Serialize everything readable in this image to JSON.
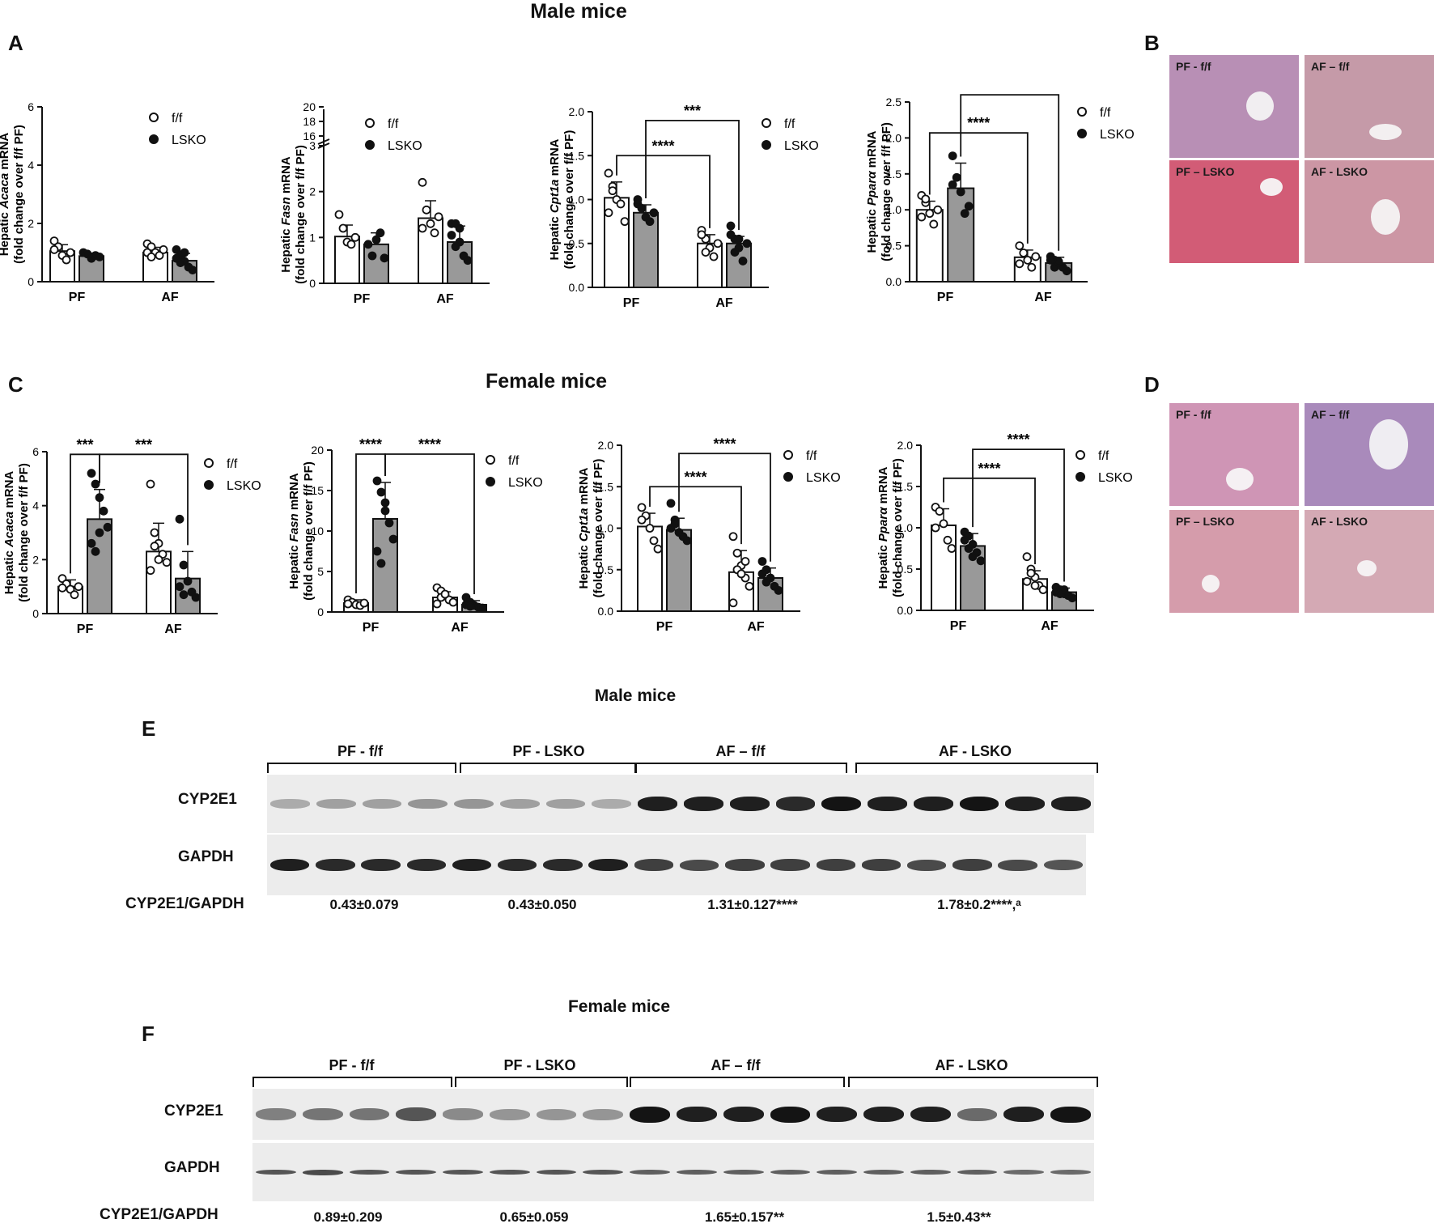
{
  "headers": {
    "male_top": "Male mice",
    "female_top": "Female mice",
    "male_blot": "Male mice",
    "female_blot": "Female mice"
  },
  "panel_letters": {
    "A": "A",
    "B": "B",
    "C": "C",
    "D": "D",
    "E": "E",
    "F": "F"
  },
  "colors": {
    "ff_bar": "#ffffff",
    "lsko_bar": "#999999",
    "ink": "#111111"
  },
  "legend": {
    "ff": "f/f",
    "lsko": "LSKO"
  },
  "chart_data": [
    {
      "id": "m_acaca",
      "type": "bar",
      "ylabel_pre": "Hepatic ",
      "ylabel_gene": "Acaca",
      "ylabel_post": " mRNA",
      "ylabel2": "(fold change over f/f PF)",
      "categories": [
        "PF",
        "AF"
      ],
      "ylim": [
        0,
        6
      ],
      "yticks": [
        "0",
        "2",
        "4",
        "6"
      ],
      "yvals": [
        0,
        2,
        4,
        6
      ],
      "series": [
        {
          "name": "f/f",
          "values": [
            1.05,
            1.0
          ],
          "err": [
            0.22,
            0.18
          ],
          "points": [
            [
              1.4,
              1.2,
              0.9,
              0.75,
              1.0,
              1.1
            ],
            [
              1.3,
              1.2,
              1.0,
              0.9,
              1.1,
              1.0,
              0.85
            ]
          ]
        },
        {
          "name": "LSKO",
          "values": [
            0.88,
            0.72
          ],
          "err": [
            0.1,
            0.25
          ],
          "points": [
            [
              1.0,
              0.95,
              0.8,
              0.9,
              0.85
            ],
            [
              1.1,
              0.9,
              0.7,
              0.5,
              0.4,
              0.8,
              0.65,
              1.0
            ]
          ]
        }
      ],
      "sig": []
    },
    {
      "id": "m_fasn",
      "type": "bar",
      "ylabel_pre": "Hepatic ",
      "ylabel_gene": "Fasn",
      "ylabel_post": " mRNA",
      "ylabel2": "(fold change over f/f PF)",
      "categories": [
        "PF",
        "AF"
      ],
      "ylim": [
        0,
        3
      ],
      "yticks": [
        "0",
        "1",
        "2",
        "3"
      ],
      "yvals": [
        0,
        1,
        2,
        3
      ],
      "upper_ticks": [
        "16",
        "18",
        "20"
      ],
      "series": [
        {
          "name": "f/f",
          "values": [
            1.02,
            1.42
          ],
          "err": [
            0.25,
            0.38
          ],
          "points": [
            [
              1.5,
              1.2,
              0.9,
              0.85,
              1.0
            ],
            [
              2.2,
              1.6,
              1.3,
              1.1,
              1.45,
              1.2
            ]
          ]
        },
        {
          "name": "LSKO",
          "values": [
            0.85,
            0.9
          ],
          "err": [
            0.25,
            0.35
          ],
          "points": [
            [
              0.85,
              0.6,
              0.95,
              1.1,
              0.55
            ],
            [
              1.3,
              1.3,
              0.9,
              0.6,
              0.5,
              1.05,
              0.8,
              1.2
            ]
          ]
        }
      ],
      "sig": []
    },
    {
      "id": "m_cpt1a",
      "type": "bar",
      "ylabel_pre": "Hepatic ",
      "ylabel_gene": "Cpt1a",
      "ylabel_post": " mRNA",
      "ylabel2": "(fold change over f/f PF)",
      "categories": [
        "PF",
        "AF"
      ],
      "ylim": [
        0,
        2.0
      ],
      "yticks": [
        "0.0",
        "0.5",
        "1.0",
        "1.5",
        "2.0"
      ],
      "yvals": [
        0,
        0.5,
        1.0,
        1.5,
        2.0
      ],
      "series": [
        {
          "name": "f/f",
          "values": [
            1.02,
            0.5
          ],
          "err": [
            0.18,
            0.1
          ],
          "points": [
            [
              1.3,
              1.15,
              1.0,
              0.95,
              0.75,
              0.85,
              1.1
            ],
            [
              0.65,
              0.55,
              0.45,
              0.35,
              0.5,
              0.6,
              0.4
            ]
          ]
        },
        {
          "name": "LSKO",
          "values": [
            0.85,
            0.5
          ],
          "err": [
            0.09,
            0.08
          ],
          "points": [
            [
              0.95,
              0.9,
              0.8,
              0.75,
              0.85,
              1.0
            ],
            [
              0.7,
              0.55,
              0.45,
              0.3,
              0.5,
              0.6,
              0.4,
              0.55
            ]
          ]
        }
      ],
      "sig": [
        {
          "label": "****",
          "x1": [
            0,
            0
          ],
          "x2": [
            1,
            0
          ],
          "y": 1.5
        },
        {
          "label": "***",
          "x1": [
            0,
            1
          ],
          "x2": [
            1,
            1
          ],
          "y": 1.9
        }
      ]
    },
    {
      "id": "m_ppara",
      "type": "bar",
      "ylabel_pre": "Hepatic ",
      "ylabel_gene": "Pparα",
      "ylabel_post": " mRNA",
      "ylabel2": "(fold change over f/f PF)",
      "categories": [
        "PF",
        "AF"
      ],
      "ylim": [
        0,
        2.5
      ],
      "yticks": [
        "0.0",
        "0.5",
        "1.0",
        "1.5",
        "2.0",
        "2.5"
      ],
      "yvals": [
        0,
        0.5,
        1.0,
        1.5,
        2.0,
        2.5
      ],
      "series": [
        {
          "name": "f/f",
          "values": [
            1.0,
            0.34
          ],
          "err": [
            0.12,
            0.1
          ],
          "points": [
            [
              1.2,
              1.1,
              0.95,
              0.8,
              1.0,
              0.9,
              1.15
            ],
            [
              0.5,
              0.4,
              0.3,
              0.2,
              0.35,
              0.25
            ]
          ]
        },
        {
          "name": "LSKO",
          "values": [
            1.3,
            0.26
          ],
          "err": [
            0.35,
            0.08
          ],
          "points": [
            [
              1.75,
              1.45,
              1.25,
              0.95,
              1.05,
              1.35
            ],
            [
              0.35,
              0.3,
              0.25,
              0.2,
              0.15,
              0.3,
              0.2,
              0.28
            ]
          ]
        }
      ],
      "sig": [
        {
          "label": "****",
          "x1": [
            0,
            0
          ],
          "x2": [
            1,
            0
          ],
          "y": 2.07
        },
        {
          "label": "****",
          "x1": [
            0,
            1
          ],
          "x2": [
            1,
            1
          ],
          "y": 2.6
        }
      ]
    },
    {
      "id": "f_acaca",
      "type": "bar",
      "ylabel_pre": "Hepatic ",
      "ylabel_gene": "Acaca",
      "ylabel_post": " mRNA",
      "ylabel2": "(fold change over f/f PF)",
      "categories": [
        "PF",
        "AF"
      ],
      "ylim": [
        0,
        6
      ],
      "yticks": [
        "0",
        "2",
        "4",
        "6"
      ],
      "yvals": [
        0,
        2,
        4,
        6
      ],
      "series": [
        {
          "name": "f/f",
          "values": [
            1.0,
            2.3
          ],
          "err": [
            0.25,
            1.05
          ],
          "points": [
            [
              1.3,
              1.1,
              0.9,
              0.7,
              1.0,
              0.95
            ],
            [
              4.8,
              3.0,
              2.6,
              2.2,
              1.9,
              1.6,
              2.5,
              2.0
            ]
          ]
        },
        {
          "name": "LSKO",
          "values": [
            3.5,
            1.3
          ],
          "err": [
            1.1,
            1.0
          ],
          "points": [
            [
              5.2,
              4.8,
              4.3,
              3.8,
              3.2,
              2.6,
              2.3,
              3.0
            ],
            [
              3.5,
              1.8,
              1.2,
              0.8,
              0.6,
              1.0,
              0.7
            ]
          ]
        }
      ],
      "sig": [
        {
          "label": "***",
          "x1": [
            0,
            0
          ],
          "x2": [
            0,
            1
          ],
          "y": 5.9
        },
        {
          "label": "***",
          "x1": [
            0,
            1
          ],
          "x2": [
            1,
            1
          ],
          "y": 5.9
        }
      ]
    },
    {
      "id": "f_fasn",
      "type": "bar",
      "ylabel_pre": "Hepatic ",
      "ylabel_gene": "Fasn",
      "ylabel_post": " mRNA",
      "ylabel2": "(fold change over f/f PF)",
      "categories": [
        "PF",
        "AF"
      ],
      "ylim": [
        0,
        20
      ],
      "yticks": [
        "0",
        "5",
        "10",
        "15",
        "20"
      ],
      "yvals": [
        0,
        5,
        10,
        15,
        20
      ],
      "series": [
        {
          "name": "f/f",
          "values": [
            1.1,
            1.8
          ],
          "err": [
            0.4,
            0.7
          ],
          "points": [
            [
              1.5,
              1.2,
              0.9,
              0.8,
              1.1,
              1.0
            ],
            [
              3.0,
              2.6,
              2.0,
              1.5,
              1.2,
              1.0,
              1.8,
              2.2
            ]
          ]
        },
        {
          "name": "LSKO",
          "values": [
            11.5,
            0.9
          ],
          "err": [
            4.5,
            0.5
          ],
          "points": [
            [
              16.2,
              14.8,
              13.5,
              11.0,
              9.0,
              7.5,
              6.0,
              12.5
            ],
            [
              1.8,
              1.2,
              0.8,
              0.6,
              0.5,
              0.9,
              0.7
            ]
          ]
        }
      ],
      "sig": [
        {
          "label": "****",
          "x1": [
            0,
            0
          ],
          "x2": [
            0,
            1
          ],
          "y": 19.5
        },
        {
          "label": "****",
          "x1": [
            0,
            1
          ],
          "x2": [
            1,
            1
          ],
          "y": 19.5
        }
      ]
    },
    {
      "id": "f_cpt1a",
      "type": "bar",
      "ylabel_pre": "Hepatic ",
      "ylabel_gene": "Cpt1a",
      "ylabel_post": " mRNA",
      "ylabel2": "(fold change over f/f PF)",
      "categories": [
        "PF",
        "AF"
      ],
      "ylim": [
        0,
        2.0
      ],
      "yticks": [
        "0.0",
        "0.5",
        "1.0",
        "1.5",
        "2.0"
      ],
      "yvals": [
        0,
        0.5,
        1.0,
        1.5,
        2.0
      ],
      "series": [
        {
          "name": "f/f",
          "values": [
            1.02,
            0.47
          ],
          "err": [
            0.16,
            0.26
          ],
          "points": [
            [
              1.25,
              1.15,
              1.0,
              0.85,
              0.75,
              1.1
            ],
            [
              0.9,
              0.7,
              0.55,
              0.4,
              0.3,
              0.1,
              0.5,
              0.45,
              0.6
            ]
          ]
        },
        {
          "name": "LSKO",
          "values": [
            0.98,
            0.4
          ],
          "err": [
            0.14,
            0.12
          ],
          "points": [
            [
              1.3,
              1.1,
              0.95,
              0.9,
              0.85,
              1.0,
              1.05
            ],
            [
              0.6,
              0.5,
              0.4,
              0.3,
              0.25,
              0.45,
              0.35
            ]
          ]
        }
      ],
      "sig": [
        {
          "label": "****",
          "x1": [
            0,
            0
          ],
          "x2": [
            1,
            0
          ],
          "y": 1.5
        },
        {
          "label": "****",
          "x1": [
            0,
            1
          ],
          "x2": [
            1,
            1
          ],
          "y": 1.9
        }
      ]
    },
    {
      "id": "f_ppara",
      "type": "bar",
      "ylabel_pre": "Hepatic ",
      "ylabel_gene": "Pparα",
      "ylabel_post": " mRNA",
      "ylabel2": "(fold change over f/f PF)",
      "categories": [
        "PF",
        "AF"
      ],
      "ylim": [
        0,
        2.0
      ],
      "yticks": [
        "0.0",
        "0.5",
        "1.0",
        "1.5",
        "2.0"
      ],
      "yvals": [
        0,
        0.5,
        1.0,
        1.5,
        2.0
      ],
      "series": [
        {
          "name": "f/f",
          "values": [
            1.03,
            0.38
          ],
          "err": [
            0.2,
            0.1
          ],
          "points": [
            [
              1.25,
              1.2,
              1.05,
              0.85,
              0.75,
              1.0
            ],
            [
              0.65,
              0.5,
              0.4,
              0.3,
              0.25,
              0.35,
              0.45,
              0.3
            ]
          ]
        },
        {
          "name": "LSKO",
          "values": [
            0.78,
            0.22
          ],
          "err": [
            0.15,
            0.05
          ],
          "points": [
            [
              0.95,
              0.9,
              0.8,
              0.7,
              0.6,
              0.85,
              0.75,
              0.65
            ],
            [
              0.28,
              0.25,
              0.2,
              0.18,
              0.15,
              0.22,
              0.2,
              0.25
            ]
          ]
        }
      ],
      "sig": [
        {
          "label": "****",
          "x1": [
            0,
            0
          ],
          "x2": [
            1,
            0
          ],
          "y": 1.6
        },
        {
          "label": "****",
          "x1": [
            0,
            1
          ],
          "x2": [
            1,
            1
          ],
          "y": 1.95
        }
      ]
    }
  ],
  "histology": {
    "male": [
      "PF - f/f",
      "AF – f/f",
      "PF – LSKO",
      "AF - LSKO"
    ],
    "female": [
      "PF - f/f",
      "AF – f/f",
      "PF – LSKO",
      "AF - LSKO"
    ]
  },
  "blots": {
    "male": {
      "groups": [
        "PF - f/f",
        "PF - LSKO",
        "AF – f/f",
        "AF - LSKO"
      ],
      "rows": [
        "CYP2E1",
        "GAPDH"
      ],
      "ratio_label": "CYP2E1/GAPDH",
      "ratios": [
        "0.43±0.079",
        "0.43±0.050",
        "1.31±0.127****",
        "1.78±0.2****,ᵃ"
      ],
      "cyp_intensity": [
        0.3,
        0.35,
        0.35,
        0.4,
        0.4,
        0.35,
        0.35,
        0.3,
        0.95,
        0.95,
        0.95,
        0.9,
        1.0,
        0.95,
        0.95,
        1.0,
        0.95,
        0.95
      ],
      "gapdh_intensity": [
        0.95,
        0.9,
        0.9,
        0.9,
        0.95,
        0.9,
        0.9,
        0.95,
        0.8,
        0.75,
        0.8,
        0.8,
        0.8,
        0.8,
        0.75,
        0.8,
        0.75,
        0.7
      ]
    },
    "female": {
      "groups": [
        "PF - f/f",
        "PF - LSKO",
        "AF – f/f",
        "AF - LSKO"
      ],
      "rows": [
        "CYP2E1",
        "GAPDH"
      ],
      "ratio_label": "CYP2E1/GAPDH",
      "ratios": [
        "0.89±0.209",
        "0.65±0.059",
        "1.65±0.157**",
        "1.5±0.43**"
      ],
      "cyp_intensity": [
        0.5,
        0.55,
        0.55,
        0.7,
        0.45,
        0.4,
        0.4,
        0.4,
        1.0,
        0.95,
        0.95,
        1.0,
        0.95,
        0.95,
        0.95,
        0.6,
        0.95,
        1.0
      ],
      "gapdh_intensity": [
        0.7,
        0.75,
        0.7,
        0.7,
        0.7,
        0.7,
        0.7,
        0.7,
        0.65,
        0.65,
        0.65,
        0.65,
        0.65,
        0.65,
        0.65,
        0.65,
        0.6,
        0.6
      ]
    }
  }
}
